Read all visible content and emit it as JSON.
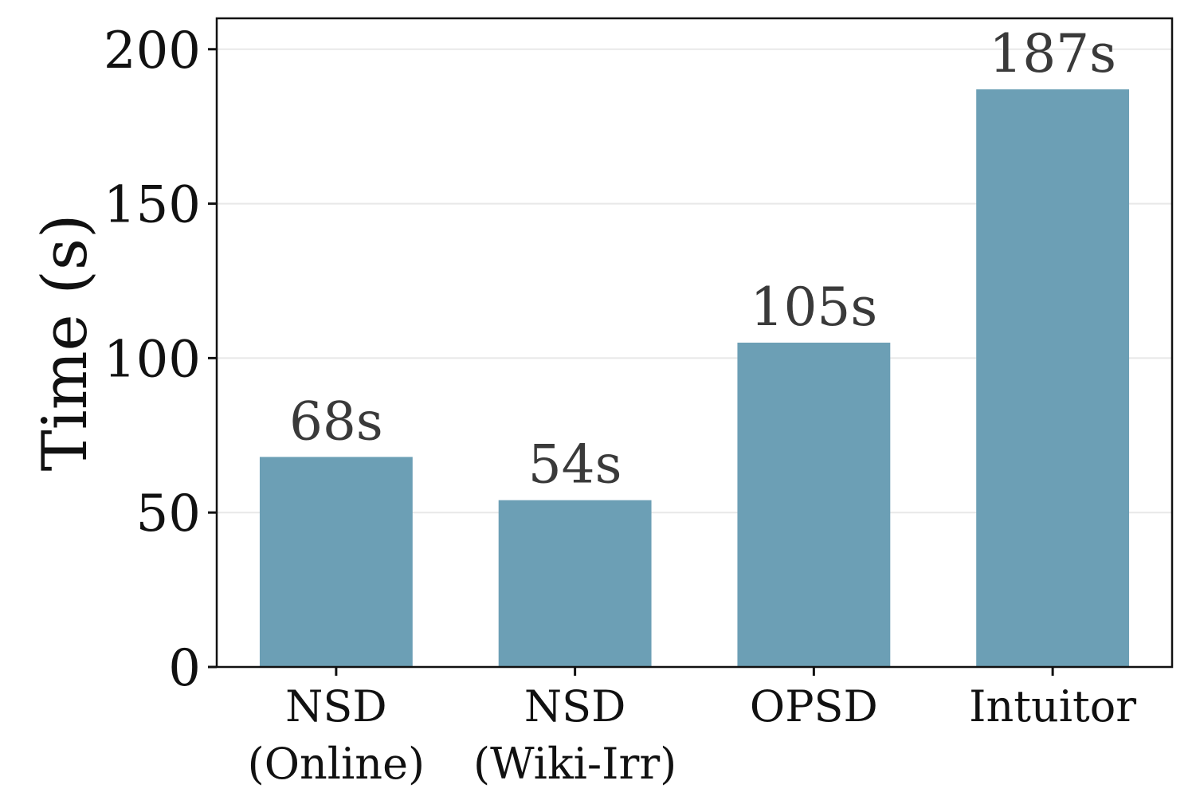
{
  "chart_data": {
    "type": "bar",
    "categories": [
      [
        "NSD",
        "(Online)"
      ],
      [
        "NSD",
        "(Wiki-Irr)"
      ],
      [
        "OPSD"
      ],
      [
        "Intuitor"
      ]
    ],
    "values": [
      68,
      54,
      105,
      187
    ],
    "data_labels": [
      "68s",
      "54s",
      "105s",
      "187s"
    ],
    "ylabel": "Time (s)",
    "xlabel": "",
    "title": "",
    "ylim": [
      0,
      210
    ],
    "yticks": [
      0,
      50,
      100,
      150,
      200
    ],
    "grid": "horizontal",
    "legend": "none",
    "bar_color": "#6c9fb5",
    "grid_color": "#e8e8e8"
  }
}
